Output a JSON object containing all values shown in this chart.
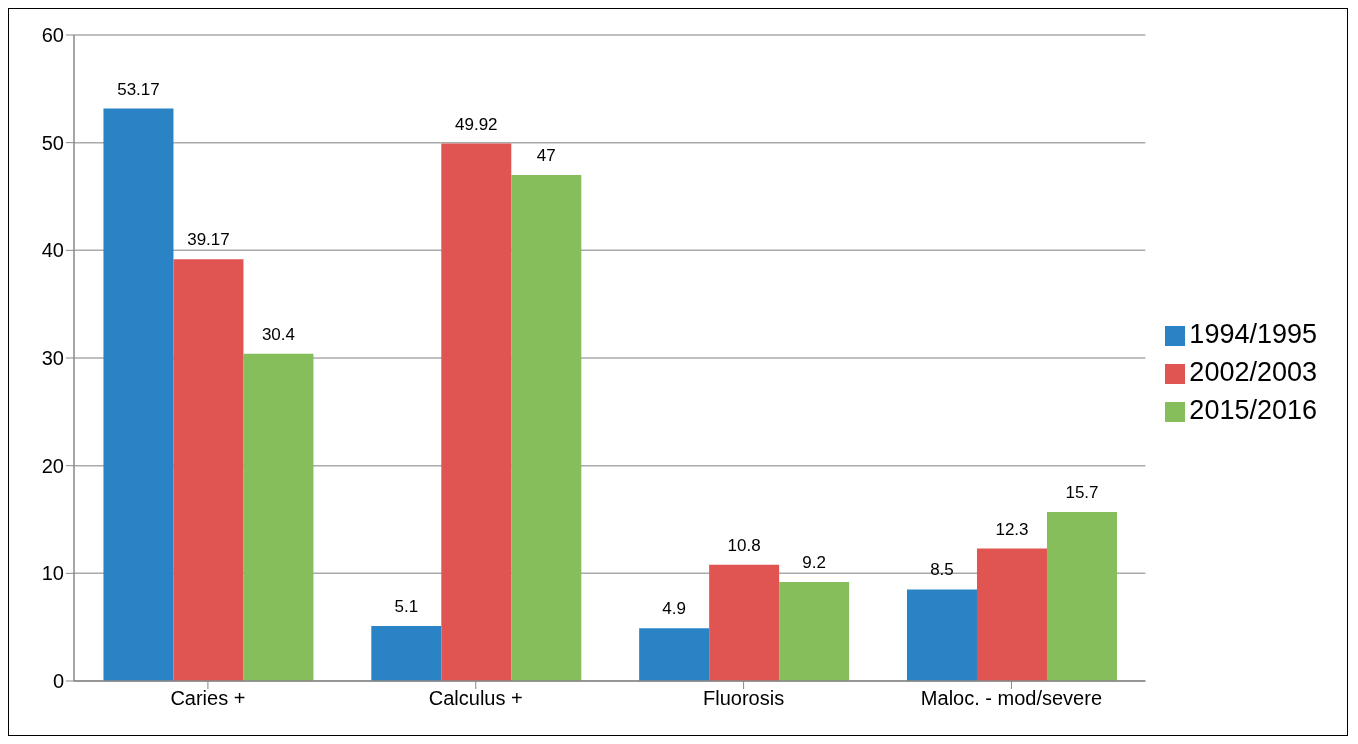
{
  "chart_data": {
    "type": "bar",
    "categories": [
      "Caries +",
      "Calculus +",
      "Fluorosis",
      "Maloc. - mod/severe"
    ],
    "series": [
      {
        "name": "1994/1995",
        "color": "#2a83c4",
        "values": [
          53.17,
          5.1,
          4.9,
          8.5
        ]
      },
      {
        "name": "2002/2003",
        "color": "#e05552",
        "values": [
          39.17,
          49.92,
          10.8,
          12.3
        ]
      },
      {
        "name": "2015/2016",
        "color": "#85be5a",
        "values": [
          30.4,
          47,
          9.2,
          15.7
        ]
      }
    ],
    "ylim": [
      0,
      60
    ],
    "yticks": [
      0,
      10,
      20,
      30,
      40,
      50,
      60
    ],
    "grid": "y",
    "legend": "right",
    "data_labels": true
  }
}
